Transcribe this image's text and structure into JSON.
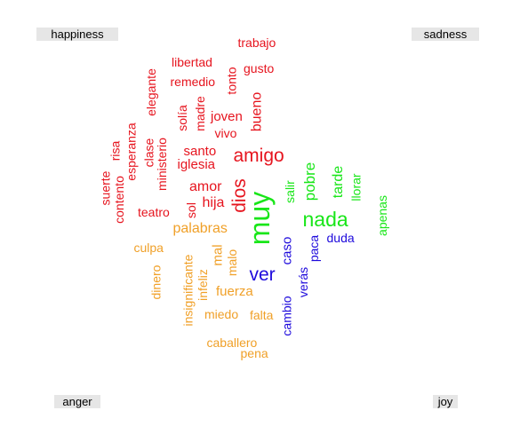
{
  "labels": {
    "happiness": "happiness",
    "sadness": "sadness",
    "anger": "anger",
    "joy": "joy"
  },
  "colors": {
    "happiness": "#e6141e",
    "sadness": "#19e619",
    "anger": "#f0a028",
    "joy": "#1e0adc"
  },
  "words": [
    {
      "text": "trabajo",
      "cat": "happiness",
      "rot": false
    },
    {
      "text": "libertad",
      "cat": "happiness",
      "rot": false
    },
    {
      "text": "gusto",
      "cat": "happiness",
      "rot": false
    },
    {
      "text": "remedio",
      "cat": "happiness",
      "rot": false
    },
    {
      "text": "tonto",
      "cat": "happiness",
      "rot": true
    },
    {
      "text": "elegante",
      "cat": "happiness",
      "rot": true
    },
    {
      "text": "joven",
      "cat": "happiness",
      "rot": false
    },
    {
      "text": "bueno",
      "cat": "happiness",
      "rot": true
    },
    {
      "text": "solía",
      "cat": "happiness",
      "rot": true
    },
    {
      "text": "madre",
      "cat": "happiness",
      "rot": true
    },
    {
      "text": "vivo",
      "cat": "happiness",
      "rot": false
    },
    {
      "text": "risa",
      "cat": "happiness",
      "rot": true
    },
    {
      "text": "esperanza",
      "cat": "happiness",
      "rot": true
    },
    {
      "text": "clase",
      "cat": "happiness",
      "rot": true
    },
    {
      "text": "ministerio",
      "cat": "happiness",
      "rot": true
    },
    {
      "text": "santo",
      "cat": "happiness",
      "rot": false
    },
    {
      "text": "amigo",
      "cat": "happiness",
      "rot": false
    },
    {
      "text": "iglesia",
      "cat": "happiness",
      "rot": false
    },
    {
      "text": "suerte",
      "cat": "happiness",
      "rot": true
    },
    {
      "text": "contento",
      "cat": "happiness",
      "rot": true
    },
    {
      "text": "amor",
      "cat": "happiness",
      "rot": false
    },
    {
      "text": "dios",
      "cat": "happiness",
      "rot": true
    },
    {
      "text": "hija",
      "cat": "happiness",
      "rot": false
    },
    {
      "text": "sol",
      "cat": "happiness",
      "rot": true
    },
    {
      "text": "teatro",
      "cat": "happiness",
      "rot": false
    },
    {
      "text": "salir",
      "cat": "sadness",
      "rot": true
    },
    {
      "text": "pobre",
      "cat": "sadness",
      "rot": true
    },
    {
      "text": "tarde",
      "cat": "sadness",
      "rot": true
    },
    {
      "text": "llorar",
      "cat": "sadness",
      "rot": true
    },
    {
      "text": "muy",
      "cat": "sadness",
      "rot": true
    },
    {
      "text": "nada",
      "cat": "sadness",
      "rot": false
    },
    {
      "text": "apenas",
      "cat": "sadness",
      "rot": true
    },
    {
      "text": "palabras",
      "cat": "anger",
      "rot": false
    },
    {
      "text": "culpa",
      "cat": "anger",
      "rot": false
    },
    {
      "text": "mal",
      "cat": "anger",
      "rot": true
    },
    {
      "text": "malo",
      "cat": "anger",
      "rot": true
    },
    {
      "text": "dinero",
      "cat": "anger",
      "rot": true
    },
    {
      "text": "insignificante",
      "cat": "anger",
      "rot": true
    },
    {
      "text": "infeliz",
      "cat": "anger",
      "rot": true
    },
    {
      "text": "fuerza",
      "cat": "anger",
      "rot": false
    },
    {
      "text": "miedo",
      "cat": "anger",
      "rot": false
    },
    {
      "text": "falta",
      "cat": "anger",
      "rot": false
    },
    {
      "text": "caballero",
      "cat": "anger",
      "rot": false
    },
    {
      "text": "pena",
      "cat": "anger",
      "rot": false
    },
    {
      "text": "caso",
      "cat": "joy",
      "rot": true
    },
    {
      "text": "paca",
      "cat": "joy",
      "rot": true
    },
    {
      "text": "duda",
      "cat": "joy",
      "rot": false
    },
    {
      "text": "ver",
      "cat": "joy",
      "rot": false
    },
    {
      "text": "verás",
      "cat": "joy",
      "rot": true
    },
    {
      "text": "cambio",
      "cat": "joy",
      "rot": true
    }
  ]
}
